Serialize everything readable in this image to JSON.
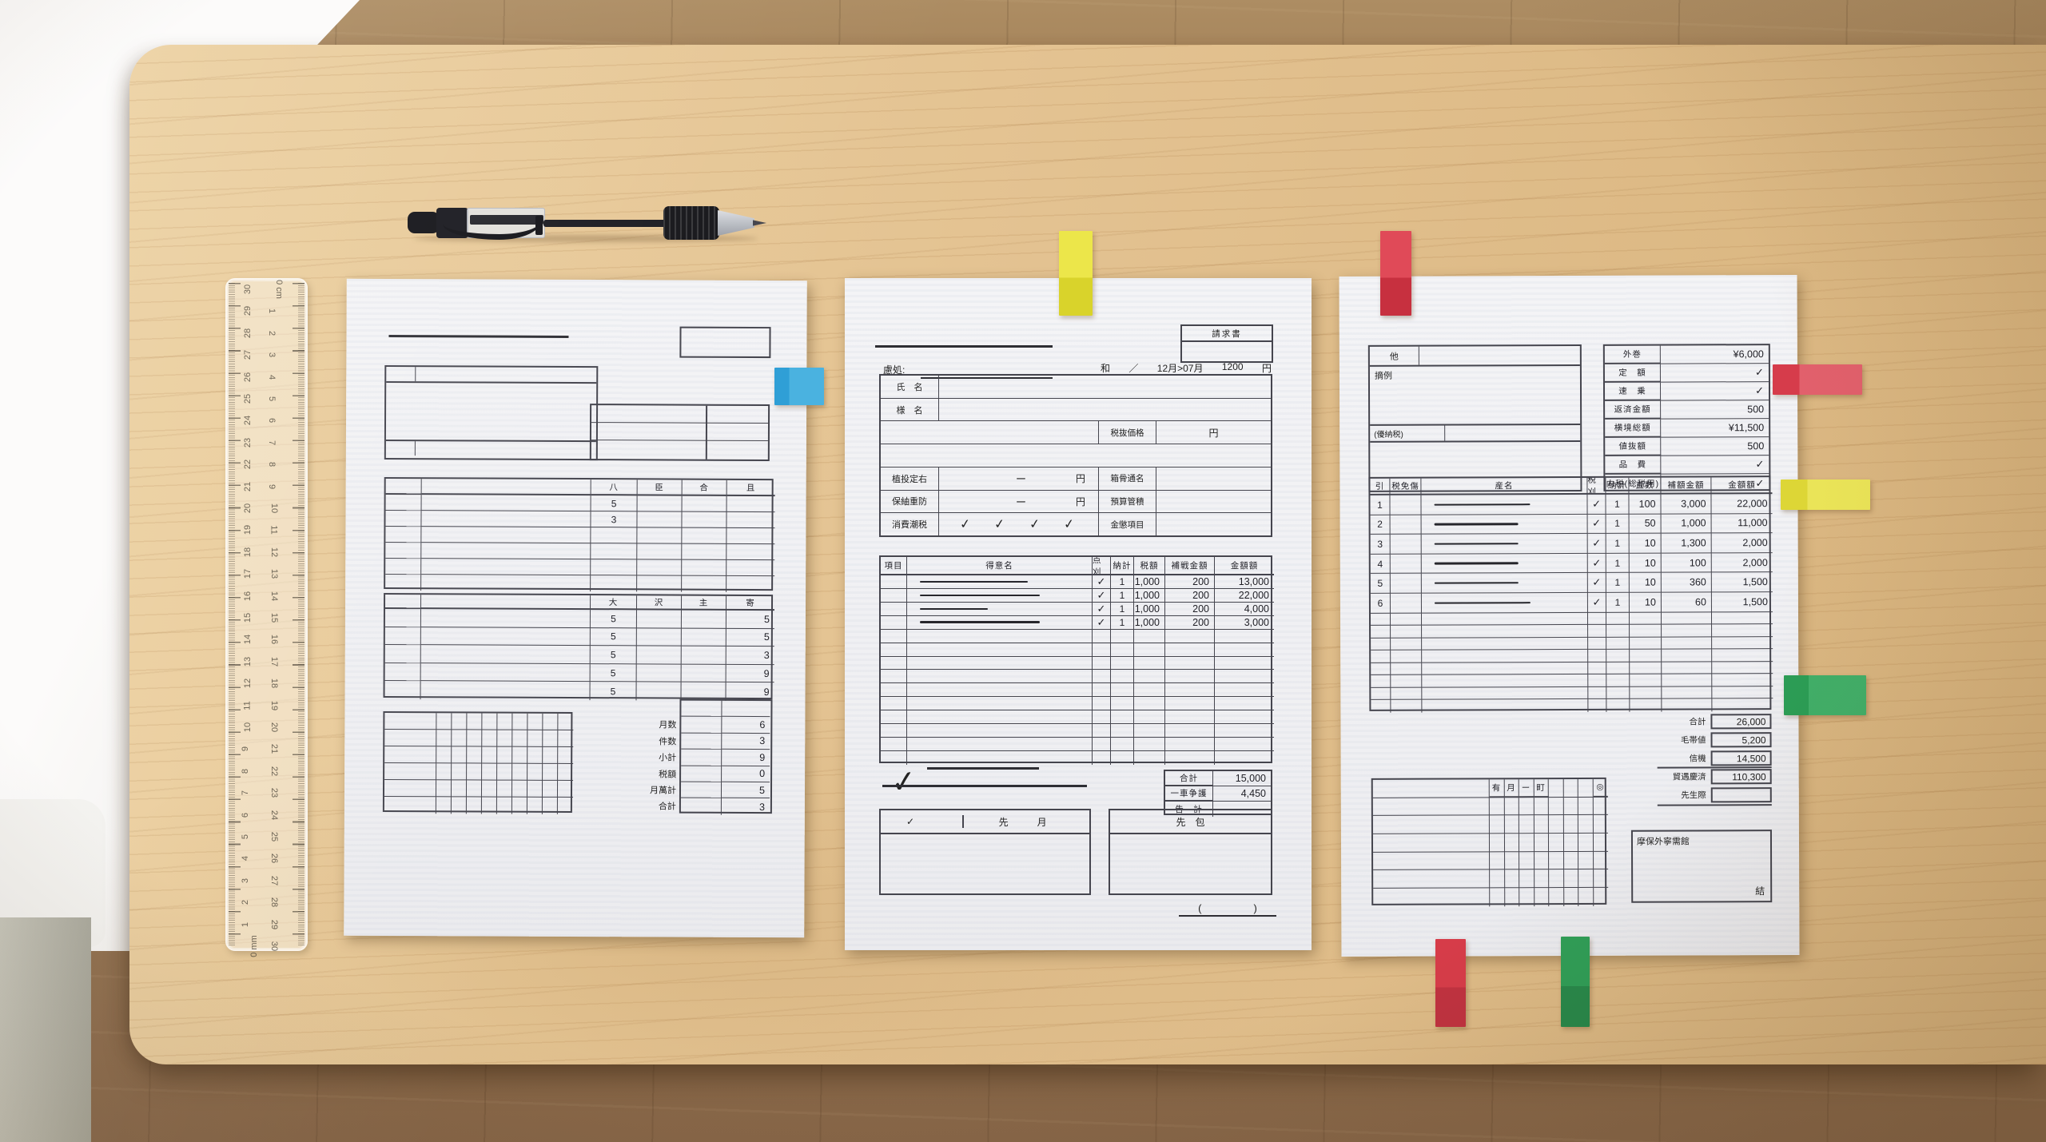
{
  "scene": {
    "description": "Top-down photo: three Japanese invoice-style paper forms taped with colored index tabs on a light wooden desk, with a black retractable ballpoint pen and a transparent 30 cm ruler; white curtain at left, wooden floor visible at edges",
    "colors": {
      "desk": "#e3c291",
      "floor": "#97744c",
      "curtain": "#f4f3f1",
      "paper": "#f2f2f4",
      "line_ink": "#45454e"
    }
  },
  "pen": {
    "name": "retractable-ballpoint-pen",
    "body_color": "#15151a"
  },
  "ruler": {
    "length_cm": 30,
    "right_scale": [
      "0 cm",
      "1",
      "2",
      "3",
      "4",
      "5",
      "6",
      "7",
      "8",
      "9",
      "10",
      "11",
      "12",
      "13",
      "14",
      "15",
      "16",
      "17",
      "18",
      "19",
      "20",
      "21",
      "22",
      "23",
      "24",
      "25",
      "26",
      "27",
      "28",
      "29",
      "30"
    ],
    "left_scale": [
      "30",
      "29",
      "28",
      "27",
      "26",
      "25",
      "24",
      "23",
      "22",
      "21",
      "20",
      "19",
      "18",
      "17",
      "16",
      "15",
      "14",
      "13",
      "12",
      "11",
      "10",
      "9",
      "8",
      "7",
      "6",
      "5",
      "4",
      "3",
      "2",
      "1",
      "0 mm"
    ]
  },
  "tabs": [
    {
      "name": "blue-sticky-tab",
      "color": "#2f9fd6",
      "color2": "#4ab2e0"
    },
    {
      "name": "yellow-sticky-tab-top",
      "color": "#ece64a",
      "color2": "#d9d32b"
    },
    {
      "name": "red-sticky-tab-top",
      "color": "#e04a58",
      "color2": "#c7303f"
    },
    {
      "name": "red-sticky-tab-right",
      "color": "#d63c4b",
      "color2": "#e2606c"
    },
    {
      "name": "yellow-sticky-tab-right",
      "color": "#ddd636",
      "color2": "#ebe558"
    },
    {
      "name": "green-sticky-tab-right",
      "color": "#2b9e56",
      "color2": "#41b069"
    },
    {
      "name": "red-sticky-tab-bottom",
      "color": "#d63c49",
      "color2": "#c03240"
    },
    {
      "name": "green-sticky-tab-bottom",
      "color": "#2f9e57",
      "color2": "#27884a"
    }
  ],
  "doc_left": {
    "table1": {
      "headers": [
        "八",
        "臣",
        "合",
        "且"
      ],
      "col1_values": [
        "5",
        "3",
        "",
        "",
        "",
        ""
      ]
    },
    "table2": {
      "headers": [
        "大",
        "沢",
        "主",
        "寄"
      ],
      "col1_values": [
        "5",
        "5",
        "5",
        "5",
        "5"
      ],
      "col4_values": [
        "5",
        "5",
        "3",
        "9",
        "9"
      ]
    },
    "summary": [
      {
        "label": "月数",
        "value": "6"
      },
      {
        "label": "件数",
        "value": "3"
      },
      {
        "label": "小計",
        "value": "9"
      },
      {
        "label": "税額",
        "value": "0"
      },
      {
        "label": "月萬計",
        "value": "5"
      },
      {
        "label": "合計",
        "value": "3"
      }
    ]
  },
  "doc_middle": {
    "stamp_label": "請求書",
    "ref_label": "慮処:",
    "date_line": {
      "era": "和",
      "slash": "／",
      "range": "12月>07月",
      "amount": "1200",
      "unit": "円"
    },
    "info": {
      "name_label": "氏　名",
      "name2_label": "様　名",
      "price_label": "税抜価格",
      "price_unit": "円",
      "row4_label": "植投定右",
      "row4_right": "箱骨通名",
      "row5_label": "保紬重防",
      "row5_right": "預算管積",
      "dash": "ー",
      "unit": "円",
      "row6_label": "消費潮税",
      "checks": [
        "✓",
        "✓",
        "✓",
        "✓"
      ],
      "row6_right": "金懲項目"
    },
    "table": {
      "headers": [
        "項目",
        "得意名",
        "点刈",
        "納計",
        "税額",
        "補戦金額",
        "金額額"
      ],
      "rows": [
        {
          "check": "✓",
          "qty": "1",
          "unit": "1,000",
          "sub": "200",
          "amount": "13,000"
        },
        {
          "check": "✓",
          "qty": "1",
          "unit": "1,000",
          "sub": "200",
          "amount": "22,000"
        },
        {
          "check": "✓",
          "qty": "1",
          "unit": "1,000",
          "sub": "200",
          "amount": "4,000"
        },
        {
          "check": "✓",
          "qty": "1",
          "unit": "1,000",
          "sub": "200",
          "amount": "3,000"
        }
      ],
      "empty_rows": 10
    },
    "summary": [
      {
        "label": "合計",
        "value": "15,000"
      },
      {
        "label": "一車争護",
        "value": "4,450"
      },
      {
        "label": "告　計",
        "value": ""
      }
    ],
    "annotation_check": "✓",
    "footer": {
      "left_check": "✓",
      "left_label1": "先",
      "left_label2": "月",
      "right_label": "先　包",
      "paren": "(　　　　　)"
    }
  },
  "doc_right": {
    "left_block": {
      "row1_label": "他",
      "block_label": "摘例",
      "row3_label": "(優納税)"
    },
    "info_rows": [
      {
        "label": "外巻",
        "value": "¥6,000"
      },
      {
        "label": "定　額",
        "value": "✓"
      },
      {
        "label": "速　乗",
        "value": "✓"
      },
      {
        "label": "返済金額",
        "value": "500"
      },
      {
        "label": "横境総額",
        "value": "¥11,500"
      },
      {
        "label": "値抜額",
        "value": "500"
      },
      {
        "label": "品　費",
        "value": "✓"
      },
      {
        "label": "内税(総税用)",
        "value": "✓"
      }
    ],
    "table": {
      "headers": [
        "引",
        "税免傷",
        "産名",
        "税刈",
        "納計",
        "直数",
        "補額金額",
        "金額額"
      ],
      "rows": [
        {
          "no": "1",
          "check": "✓",
          "qty": "1",
          "unit": "100",
          "sub": "3,000",
          "amount": "22,000"
        },
        {
          "no": "2",
          "check": "✓",
          "qty": "1",
          "unit": "50",
          "sub": "1,000",
          "amount": "11,000"
        },
        {
          "no": "3",
          "check": "✓",
          "qty": "1",
          "unit": "10",
          "sub": "1,300",
          "amount": "2,000"
        },
        {
          "no": "4",
          "check": "✓",
          "qty": "1",
          "unit": "10",
          "sub": "100",
          "amount": "2,000"
        },
        {
          "no": "5",
          "check": "✓",
          "qty": "1",
          "unit": "10",
          "sub": "360",
          "amount": "1,500"
        },
        {
          "no": "6",
          "check": "✓",
          "qty": "1",
          "unit": "10",
          "sub": "60",
          "amount": "1,500"
        }
      ],
      "empty_rows": 8
    },
    "summary": [
      {
        "label": "合計",
        "value": "26,000"
      },
      {
        "label": "毛帯値",
        "value": "5,200"
      },
      {
        "label": "信機",
        "value": "14,500"
      },
      {
        "label": "貿遇慶済",
        "value": "110,300"
      },
      {
        "label": "先生際",
        "value": ""
      }
    ],
    "grid_headers": [
      "",
      "有",
      "月",
      "ー",
      "町",
      "",
      "",
      "",
      "◎"
    ],
    "note_box": {
      "label": "摩保外寧需館",
      "corner": "結"
    }
  }
}
